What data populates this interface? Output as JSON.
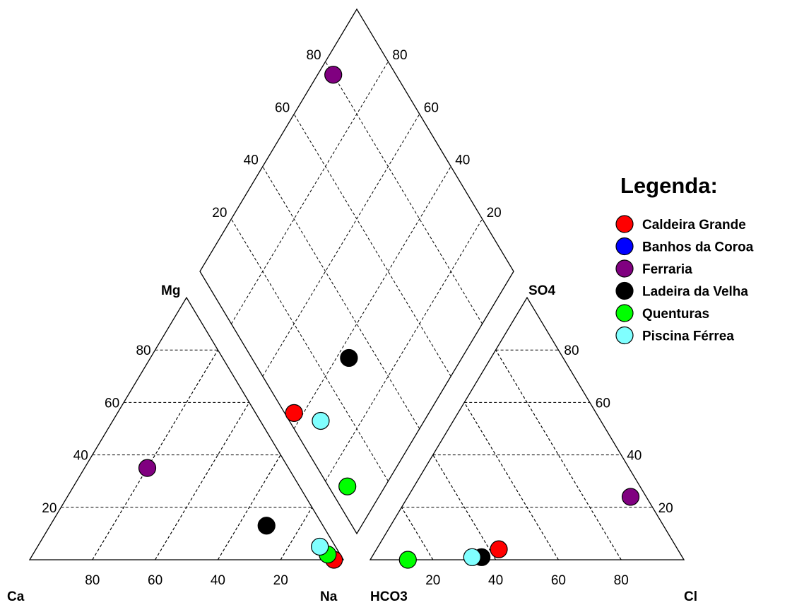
{
  "chart_data": {
    "type": "scatter",
    "subtype": "piper-diagram",
    "cation_triangle": {
      "labels": {
        "left": "Ca",
        "right": "Na",
        "top": "Mg"
      },
      "ticks": [
        20,
        40,
        60,
        80
      ]
    },
    "anion_triangle": {
      "labels": {
        "left": "HCO3",
        "right": "Cl",
        "top": "SO4"
      },
      "ticks": [
        20,
        40,
        60,
        80
      ]
    },
    "diamond": {
      "ticks": [
        20,
        40,
        60,
        80
      ]
    },
    "legend": {
      "title": "Legenda:",
      "position": "right"
    },
    "grid": true,
    "series": [
      {
        "name": "Caldeira Grande",
        "color": "#ff0000",
        "cations": {
          "Ca": 3,
          "Mg": 0,
          "Na": 97
        },
        "anions": {
          "HCO3": 57,
          "SO4": 4,
          "Cl": 39
        }
      },
      {
        "name": "Banhos da Coroa",
        "color": "#0000ff",
        "cations": null,
        "anions": null
      },
      {
        "name": "Ferraria",
        "color": "#800080",
        "cations": {
          "Ca": 45,
          "Mg": 35,
          "Na": 20
        },
        "anions": {
          "HCO3": 5,
          "SO4": 24,
          "Cl": 71
        }
      },
      {
        "name": "Ladeira da Velha",
        "color": "#000000",
        "cations": {
          "Ca": 18,
          "Mg": 13,
          "Na": 69
        },
        "anions": {
          "HCO3": 64,
          "SO4": 1,
          "Cl": 35
        }
      },
      {
        "name": "Quenturas",
        "color": "#00ff00",
        "cations": {
          "Ca": 4,
          "Mg": 2,
          "Na": 94
        },
        "anions": {
          "HCO3": 88,
          "SO4": 0,
          "Cl": 12
        }
      },
      {
        "name": "Piscina Férrea",
        "color": "#80ffff",
        "cations": {
          "Ca": 5,
          "Mg": 5,
          "Na": 90
        },
        "anions": {
          "HCO3": 67,
          "SO4": 1,
          "Cl": 32
        }
      }
    ]
  }
}
